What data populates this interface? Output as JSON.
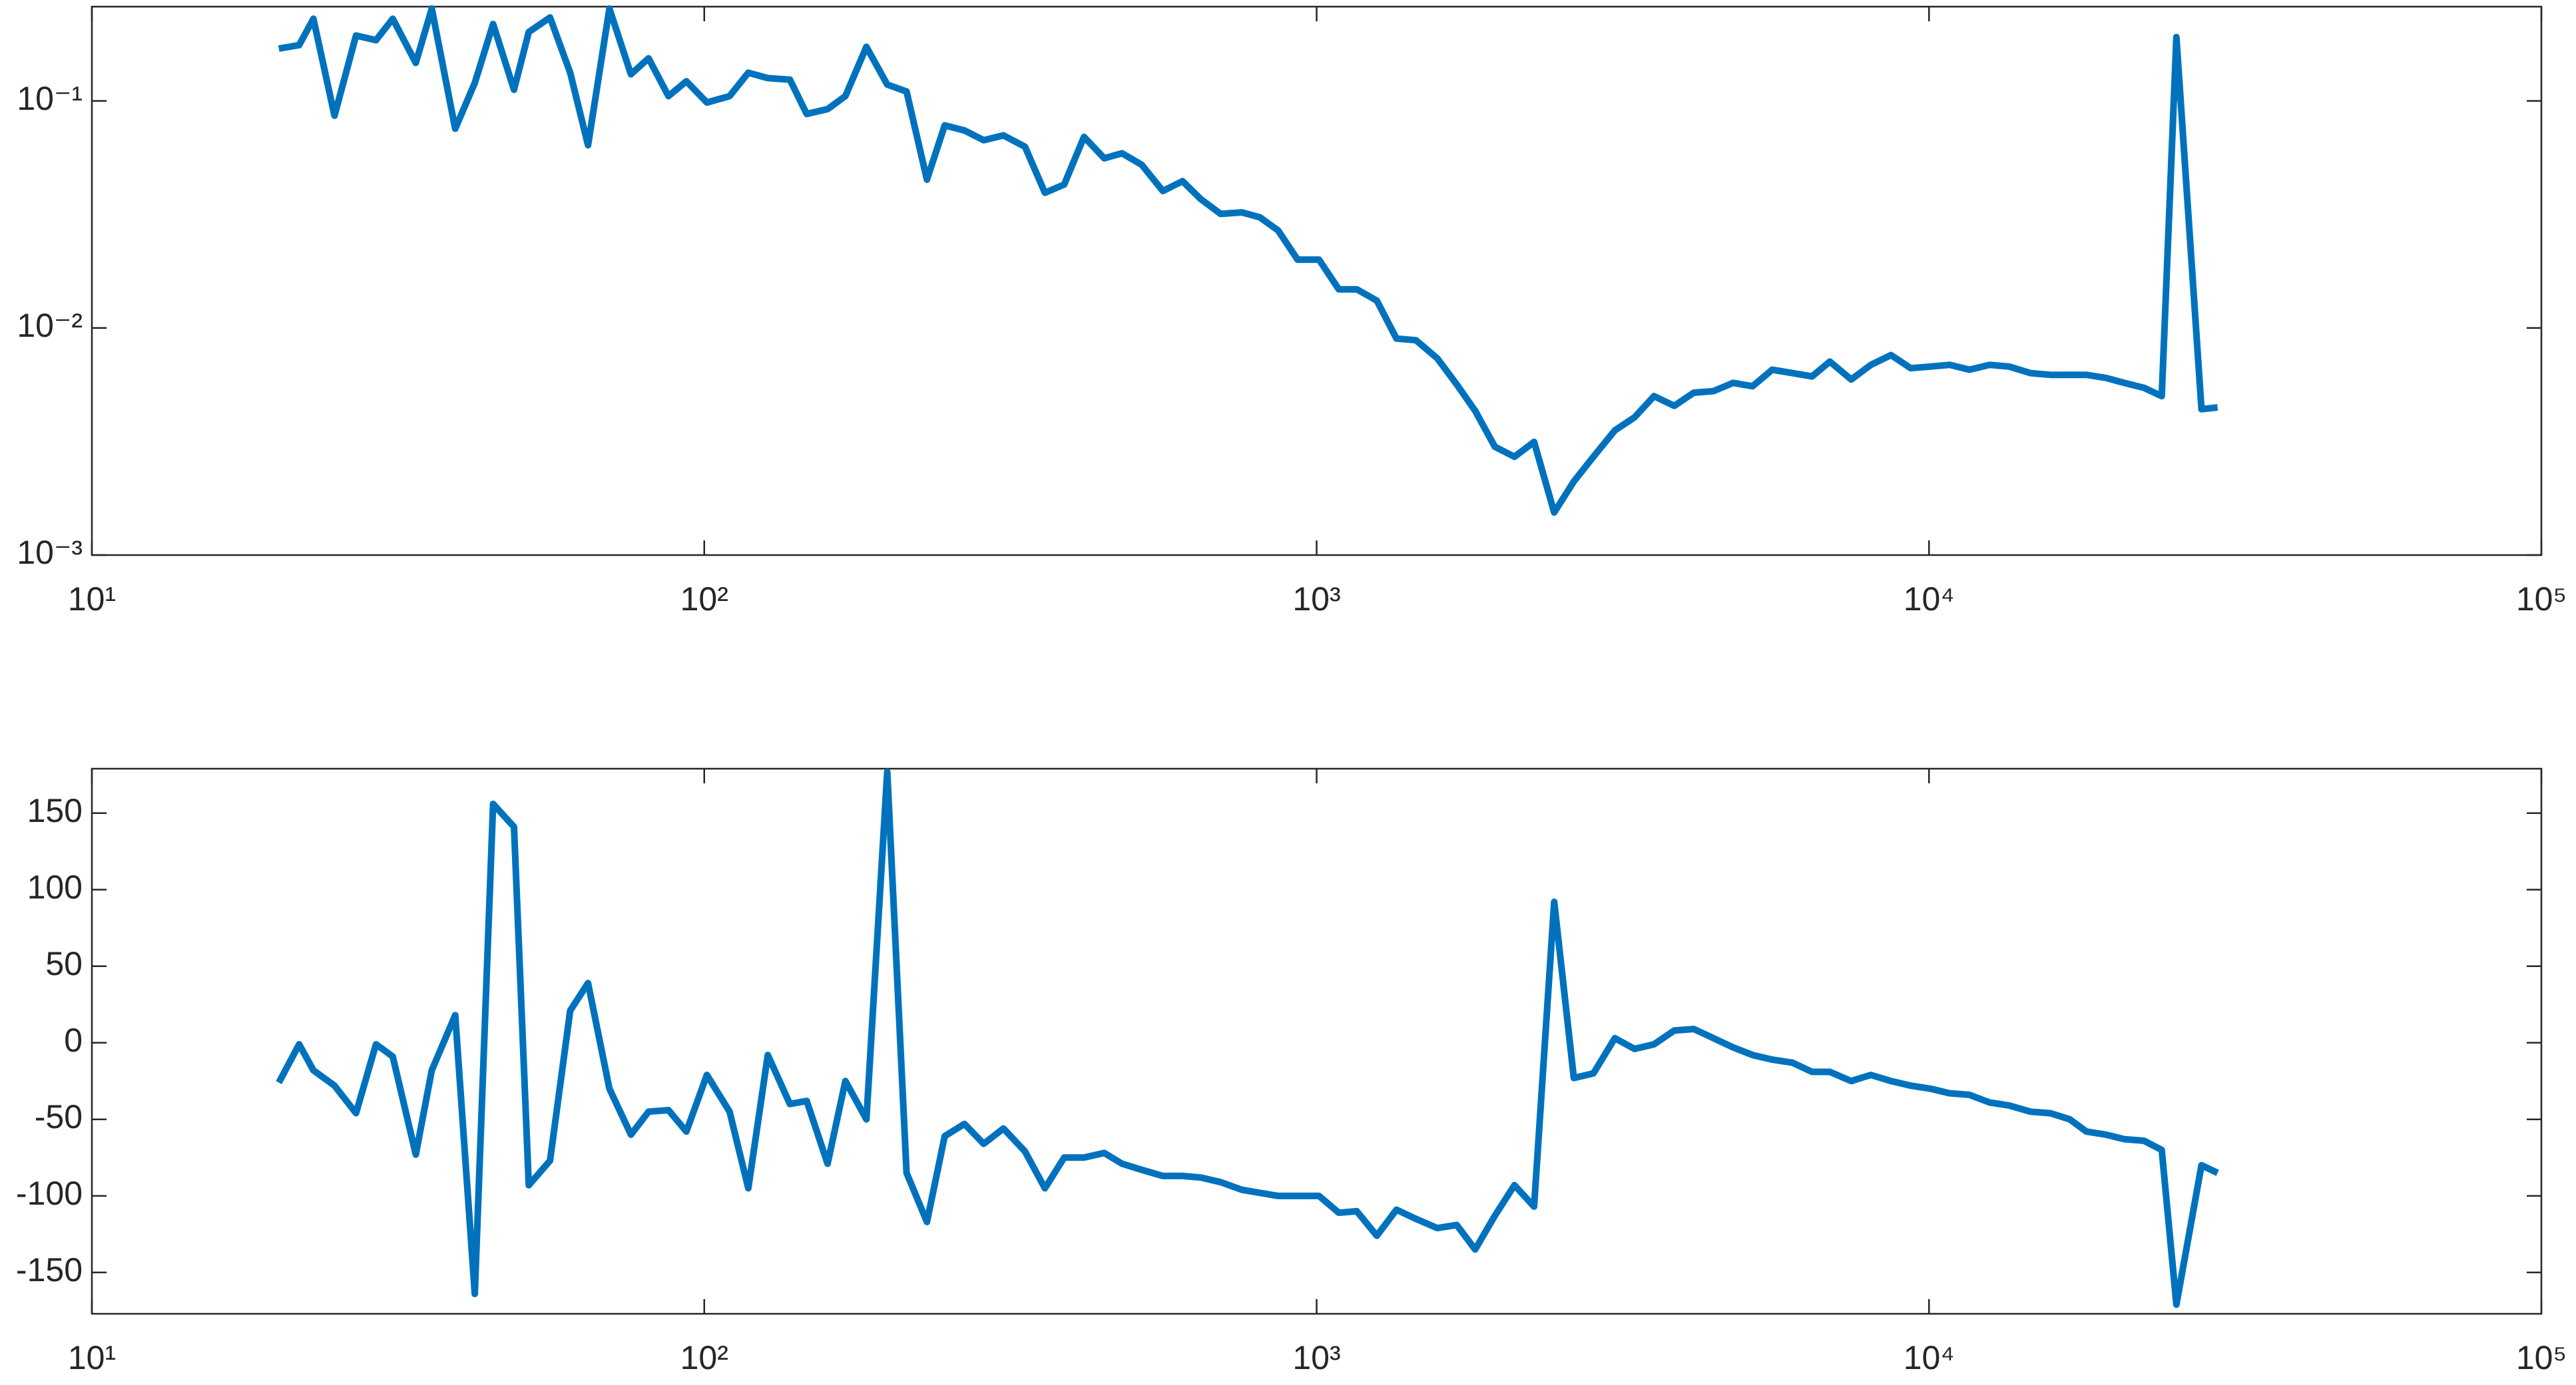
{
  "chart_data": [
    {
      "type": "line",
      "xscale": "log",
      "yscale": "log",
      "color": "#0072bd",
      "xlim": [
        10,
        100000
      ],
      "xticks": [
        {
          "value": 10,
          "label": "10¹"
        },
        {
          "value": 100,
          "label": "10²"
        },
        {
          "value": 1000,
          "label": "10³"
        },
        {
          "value": 10000,
          "label": "10⁴"
        },
        {
          "value": 100000,
          "label": "10⁵"
        }
      ],
      "ylim": [
        0.001,
        0.26
      ],
      "yticks": [
        {
          "value": 0.001,
          "label": "10⁻³"
        },
        {
          "value": 0.01,
          "label": "10⁻²"
        },
        {
          "value": 0.1,
          "label": "10⁻¹"
        }
      ],
      "x": [
        20.2,
        21.8,
        23.0,
        24.9,
        27.0,
        29.1,
        31.0,
        33.8,
        35.9,
        39.2,
        42.2,
        45.2,
        48.9,
        51.7,
        56.0,
        60.4,
        64.6,
        70.0,
        75.9,
        81.1,
        87.4,
        93.5,
        101,
        110,
        118,
        127,
        138,
        147,
        159,
        170,
        184,
        199,
        214,
        231,
        247,
        266,
        286,
        308,
        334,
        360,
        387,
        417,
        450,
        481,
        518,
        561,
        604,
        647,
        697,
        755,
        808,
        865,
        931,
        1009,
        1087,
        1163,
        1254,
        1350,
        1453,
        1574,
        1694,
        1815,
        1954,
        2104,
        2265,
        2443,
        2630,
        2831,
        3069,
        3304,
        3556,
        3837,
        4130,
        4446,
        4786,
        5152,
        5546,
        5984,
        6442,
        6887,
        7464,
        8035,
        8670,
        9333,
        10050,
        10810,
        11640,
        12560,
        13520,
        14650,
        15780,
        16980,
        18070,
        19450,
        20840,
        22440,
        23990,
        25350,
        27860,
        29600
      ],
      "values": [
        0.17,
        0.176,
        0.23,
        0.0861,
        0.194,
        0.185,
        0.23,
        0.147,
        0.255,
        0.0754,
        0.12,
        0.218,
        0.112,
        0.201,
        0.233,
        0.133,
        0.0638,
        0.255,
        0.131,
        0.154,
        0.105,
        0.122,
        0.0984,
        0.105,
        0.133,
        0.126,
        0.124,
        0.0876,
        0.092,
        0.105,
        0.173,
        0.118,
        0.11,
        0.045,
        0.078,
        0.0741,
        0.0671,
        0.0705,
        0.0628,
        0.0394,
        0.0428,
        0.0694,
        0.0559,
        0.0588,
        0.0523,
        0.0401,
        0.0443,
        0.0369,
        0.0318,
        0.0323,
        0.0307,
        0.0269,
        0.02,
        0.02,
        0.0148,
        0.0148,
        0.0132,
        0.00898,
        0.00883,
        0.00735,
        0.00564,
        0.00432,
        0.003,
        0.00271,
        0.00315,
        0.00154,
        0.00211,
        0.00271,
        0.00354,
        0.00404,
        0.00501,
        0.00454,
        0.00519,
        0.00527,
        0.00573,
        0.00554,
        0.00655,
        0.00633,
        0.00612,
        0.00711,
        0.00593,
        0.00688,
        0.0076,
        0.00665,
        0.00676,
        0.00688,
        0.00655,
        0.00688,
        0.00676,
        0.00633,
        0.00622,
        0.00622,
        0.00622,
        0.00603,
        0.00573,
        0.00545,
        0.00501,
        0.191,
        0.00439,
        0.00447
      ]
    },
    {
      "type": "line",
      "xscale": "log",
      "color": "#0072bd",
      "xlim": [
        10,
        100000
      ],
      "xticks": [
        {
          "value": 10,
          "label": "10¹"
        },
        {
          "value": 100,
          "label": "10²"
        },
        {
          "value": 1000,
          "label": "10³"
        },
        {
          "value": 10000,
          "label": "10⁴"
        },
        {
          "value": 100000,
          "label": "10⁵"
        }
      ],
      "ylim": [
        -177,
        179
      ],
      "yticks": [
        -150,
        -100,
        -50,
        0,
        50,
        100,
        150
      ],
      "x": [
        20.2,
        21.8,
        23.0,
        24.9,
        27.0,
        29.1,
        31.0,
        33.8,
        35.9,
        39.2,
        42.2,
        45.2,
        48.9,
        51.7,
        56.0,
        60.4,
        64.6,
        70.0,
        75.9,
        81.1,
        87.4,
        93.5,
        101,
        110,
        118,
        127,
        138,
        147,
        159,
        170,
        184,
        199,
        214,
        231,
        247,
        266,
        286,
        308,
        334,
        360,
        387,
        417,
        450,
        481,
        518,
        561,
        604,
        647,
        697,
        755,
        808,
        865,
        931,
        1009,
        1087,
        1163,
        1254,
        1350,
        1453,
        1574,
        1694,
        1815,
        1954,
        2104,
        2265,
        2443,
        2630,
        2831,
        3069,
        3304,
        3556,
        3837,
        4130,
        4446,
        4786,
        5152,
        5546,
        5984,
        6442,
        6887,
        7464,
        8035,
        8670,
        9333,
        10050,
        10810,
        11640,
        12560,
        13520,
        14650,
        15780,
        16980,
        18070,
        19450,
        20840,
        22440,
        23990,
        25350,
        27860,
        29600
      ],
      "values": [
        -26,
        -1,
        -18,
        -28,
        -46,
        -1,
        -9,
        -73,
        -18,
        18,
        -164,
        156,
        141,
        -93,
        -77,
        21,
        39,
        -30,
        -60,
        -45,
        -44,
        -58,
        -21,
        -45,
        -95,
        -8,
        -40,
        -38,
        -79,
        -25,
        -50,
        177,
        -85,
        -117,
        -61,
        -53,
        -66,
        -56,
        -71,
        -95,
        -75,
        -75,
        -72,
        -79,
        -83,
        -87,
        -87,
        -88,
        -91,
        -96,
        -98,
        -100,
        -100,
        -100,
        -111,
        -110,
        -126,
        -109,
        -115,
        -121,
        -119,
        -135,
        -113,
        -93,
        -107,
        92,
        -23,
        -20,
        3,
        -4,
        -1,
        8,
        9,
        3,
        -3,
        -8,
        -11,
        -13,
        -19,
        -19,
        -25,
        -21,
        -25,
        -28,
        -30,
        -33,
        -34,
        -39,
        -41,
        -45,
        -46,
        -50,
        -58,
        -60,
        -63,
        -64,
        -70,
        -171,
        -80,
        -85
      ]
    }
  ]
}
